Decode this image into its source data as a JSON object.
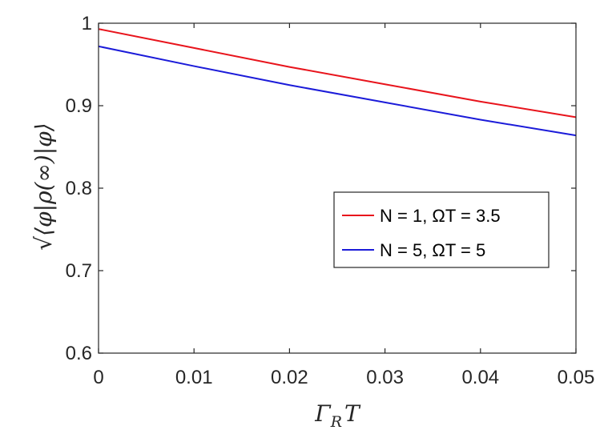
{
  "chart_data": {
    "type": "line",
    "xlabel": "Γ_R T",
    "ylabel": "√⟨φ|ρ(∞)|φ⟩",
    "xlim": [
      0,
      0.05
    ],
    "ylim": [
      0.6,
      1.0
    ],
    "x_ticks": [
      0,
      0.01,
      0.02,
      0.03,
      0.04,
      0.05
    ],
    "x_tick_labels": [
      "0",
      "0.01",
      "0.02",
      "0.03",
      "0.04",
      "0.05"
    ],
    "y_ticks": [
      0.6,
      0.7,
      0.8,
      0.9,
      1.0
    ],
    "y_tick_labels": [
      "0.6",
      "0.7",
      "0.8",
      "0.9",
      "1"
    ],
    "grid": false,
    "legend_position": "right-middle",
    "series": [
      {
        "name": "N = 1, ΩT = 3.5",
        "color": "#e8141c",
        "x": [
          0,
          0.01,
          0.02,
          0.03,
          0.04,
          0.05
        ],
        "y": [
          0.993,
          0.97,
          0.947,
          0.926,
          0.905,
          0.886
        ]
      },
      {
        "name": "N = 5, ΩT = 5",
        "color": "#1b1bd9",
        "x": [
          0,
          0.01,
          0.02,
          0.03,
          0.04,
          0.05
        ],
        "y": [
          0.972,
          0.948,
          0.925,
          0.904,
          0.883,
          0.864
        ]
      }
    ]
  }
}
